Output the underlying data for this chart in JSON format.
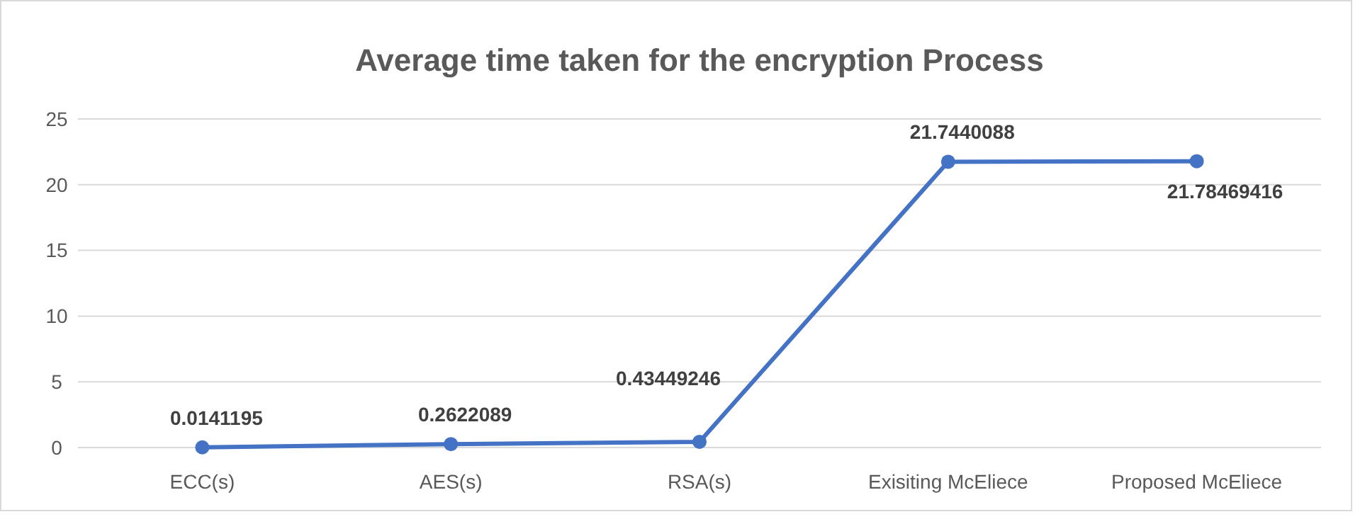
{
  "chart_data": {
    "type": "line",
    "title": "Average time taken for the encryption Process",
    "categories": [
      "ECC(s)",
      "AES(s)",
      "RSA(s)",
      "Exisiting McEliece",
      "Proposed McEliece"
    ],
    "values": [
      0.0141195,
      0.2622089,
      0.43449246,
      21.7440088,
      21.78469416
    ],
    "color": "#4472c4",
    "ylim": [
      0,
      25
    ],
    "yticks": [
      0,
      5,
      10,
      15,
      20,
      25
    ],
    "grid": "y",
    "marker": "circle",
    "line_style": "solid",
    "data_labels": true
  }
}
